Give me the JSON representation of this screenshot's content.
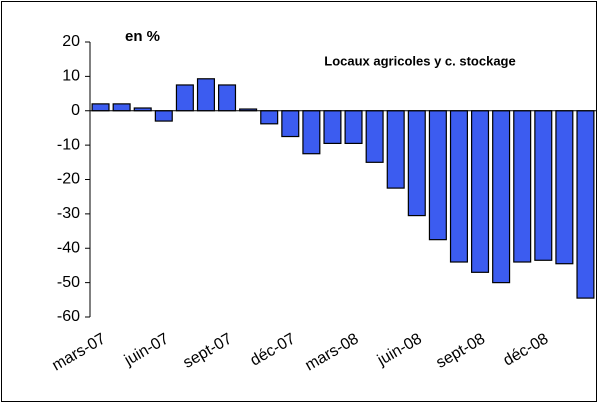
{
  "chart_data": {
    "type": "bar",
    "title": "Locaux agricoles y c. stockage",
    "y_label": "en %",
    "categories": [
      "mars-07",
      null,
      null,
      "juin-07",
      null,
      null,
      "sept-07",
      null,
      null,
      "déc-07",
      null,
      null,
      "mars-08",
      null,
      null,
      "juin-08",
      null,
      null,
      "sept-08",
      null,
      null,
      "déc-08",
      null,
      null
    ],
    "values": [
      2,
      2,
      0.8,
      -3,
      7.5,
      9.3,
      7.5,
      0.5,
      -3.8,
      -7.5,
      -12.5,
      -9.5,
      -9.5,
      -15,
      -22.5,
      -30.5,
      -37.5,
      -44,
      -47,
      -50,
      -44,
      -43.5,
      -44.5,
      -54.5
    ],
    "color": "#3c5cf0",
    "ylim": [
      -60,
      20
    ],
    "yticks": [
      -60,
      -50,
      -40,
      -30,
      -20,
      -10,
      0,
      10,
      20
    ]
  }
}
